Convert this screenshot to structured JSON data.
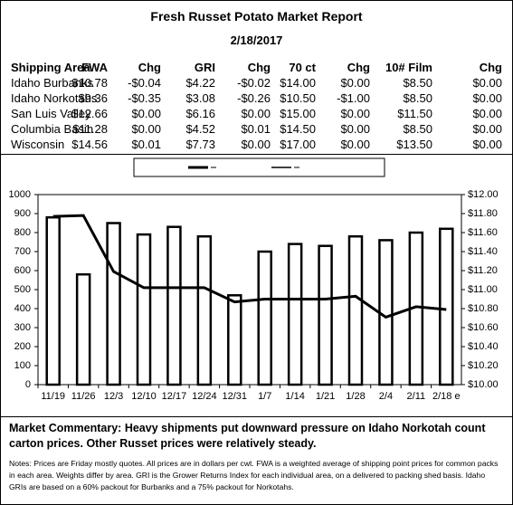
{
  "header": {
    "title": "Fresh Russet Potato Market Report",
    "date": "2/18/2017"
  },
  "table": {
    "columns": [
      "Shipping Area",
      "FWA",
      "Chg",
      "GRI",
      "Chg",
      "70 ct",
      "Chg",
      "10# Film",
      "Chg"
    ],
    "rows": [
      [
        "Idaho Burbanks",
        "$10.78",
        "-$0.04",
        "$4.22",
        "-$0.02",
        "$14.00",
        "$0.00",
        "$8.50",
        "$0.00"
      ],
      [
        "Idaho Norkotahs",
        "$9.36",
        "-$0.35",
        "$3.08",
        "-$0.26",
        "$10.50",
        "-$1.00",
        "$8.50",
        "$0.00"
      ],
      [
        "San Luis Valley",
        "$12.66",
        "$0.00",
        "$6.16",
        "$0.00",
        "$15.00",
        "$0.00",
        "$11.50",
        "$0.00"
      ],
      [
        "Columbia Basin",
        "$11.28",
        "$0.00",
        "$4.52",
        "$0.01",
        "$14.50",
        "$0.00",
        "$8.50",
        "$0.00"
      ],
      [
        "Wisconsin",
        "$14.56",
        "$0.01",
        "$7.73",
        "$0.00",
        "$17.00",
        "$0.00",
        "$13.50",
        "$0.00"
      ]
    ]
  },
  "chart_data": {
    "type": "bar-line",
    "categories": [
      "11/19",
      "11/26",
      "12/3",
      "12/10",
      "12/17",
      "12/24",
      "12/31",
      "1/7",
      "1/14",
      "1/21",
      "1/28",
      "2/4",
      "2/11",
      "2/18 e"
    ],
    "series": [
      {
        "type": "bar",
        "color": "#000000",
        "values": [
          880,
          580,
          850,
          790,
          830,
          780,
          470,
          700,
          740,
          730,
          780,
          760,
          800,
          820
        ]
      },
      {
        "type": "line",
        "axis": "y2",
        "color": "#000000",
        "values": [
          11.77,
          11.78,
          11.19,
          11.02,
          11.02,
          11.02,
          10.87,
          10.9,
          10.9,
          10.9,
          10.93,
          10.71,
          10.82,
          10.79
        ]
      }
    ],
    "ylim": [
      0,
      1000
    ],
    "yticks": [
      0,
      100,
      200,
      300,
      400,
      500,
      600,
      700,
      800,
      900,
      1000
    ],
    "y2lim": [
      10,
      12
    ],
    "y2ticks": [
      {
        "value": 10,
        "label": "$10.00"
      },
      {
        "value": 10.2,
        "label": "$10.20"
      },
      {
        "value": 10.4,
        "label": "$10.40"
      },
      {
        "value": 10.6,
        "label": "$10.60"
      },
      {
        "value": 10.8,
        "label": "$10.80"
      },
      {
        "value": 11,
        "label": "$11.00"
      },
      {
        "value": 11.2,
        "label": "$11.20"
      },
      {
        "value": 11.4,
        "label": "$11.40"
      },
      {
        "value": 11.6,
        "label": "$11.60"
      },
      {
        "value": 11.8,
        "label": "$11.80"
      },
      {
        "value": 12,
        "label": "$12.00"
      }
    ]
  },
  "commentary": "Market Commentary: Heavy shipments put downward pressure on Idaho Norkotah count carton prices. Other Russet prices were relatively steady.",
  "notes": "Notes: Prices are Friday mostly quotes. All prices are in dollars per cwt. FWA is a weighted average of shipping point prices for  common packs in each area. Weights differ by area. GRI is the Grower Returns Index for each individual area, on a delivered to packing shed basis. Idaho GRIs are based on a 60% packout for Burbanks and a 75% packout for Norkotahs."
}
